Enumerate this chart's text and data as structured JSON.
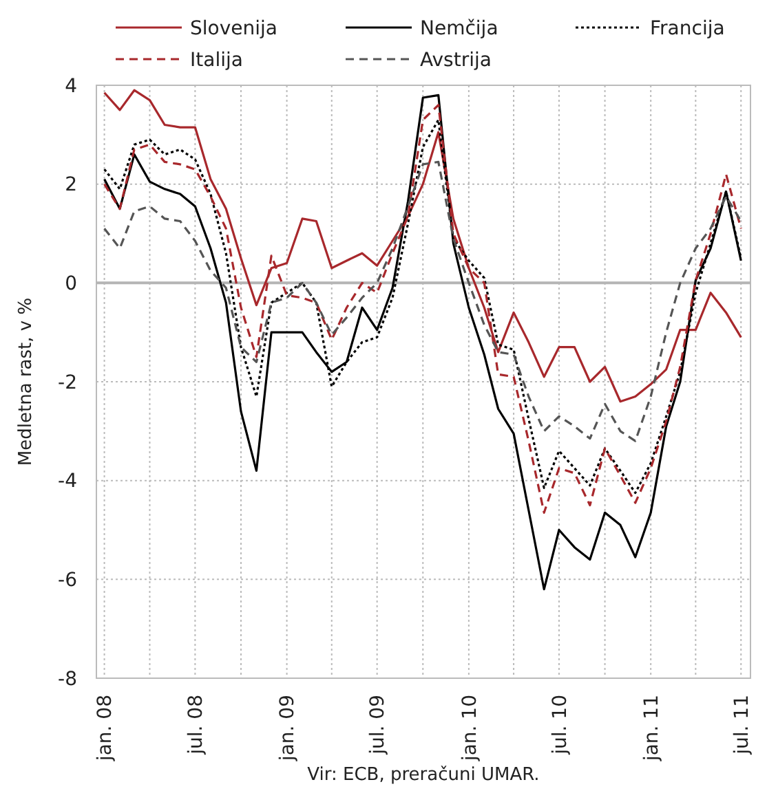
{
  "chart_data": {
    "type": "line",
    "ylabel": "Medletna rast, v %",
    "annotations": [
      "Vir: ECB, preračuni UMAR."
    ],
    "x": [
      "2008-01",
      "2008-02",
      "2008-03",
      "2008-04",
      "2008-05",
      "2008-06",
      "2008-07",
      "2008-08",
      "2008-09",
      "2008-10",
      "2008-11",
      "2008-12",
      "2009-01",
      "2009-02",
      "2009-03",
      "2009-04",
      "2009-05",
      "2009-06",
      "2009-07",
      "2009-08",
      "2009-09",
      "2009-10",
      "2009-11",
      "2009-12",
      "2010-01",
      "2010-02",
      "2010-03",
      "2010-04",
      "2010-05",
      "2010-06",
      "2010-07",
      "2010-08",
      "2010-09",
      "2010-10",
      "2010-11",
      "2010-12",
      "2011-01",
      "2011-02",
      "2011-03",
      "2011-04",
      "2011-05",
      "2011-06",
      "2011-07"
    ],
    "xlim": [
      "2007-12-16",
      "2011-07-20"
    ],
    "xticks": [
      {
        "value": "2008-01",
        "label": "jan. 08"
      },
      {
        "value": "2008-04",
        "label": null
      },
      {
        "value": "2008-07",
        "label": "jul. 08"
      },
      {
        "value": "2008-10",
        "label": null
      },
      {
        "value": "2009-01",
        "label": "jan. 09"
      },
      {
        "value": "2009-04",
        "label": null
      },
      {
        "value": "2009-07",
        "label": "jul. 09"
      },
      {
        "value": "2009-10",
        "label": null
      },
      {
        "value": "2010-01",
        "label": "jan. 10"
      },
      {
        "value": "2010-04",
        "label": null
      },
      {
        "value": "2010-07",
        "label": "jul. 10"
      },
      {
        "value": "2010-10",
        "label": null
      },
      {
        "value": "2011-01",
        "label": "jan. 11"
      },
      {
        "value": "2011-04",
        "label": null
      },
      {
        "value": "2011-07",
        "label": "jul. 11"
      }
    ],
    "ylim": [
      -8,
      4
    ],
    "yticks": [
      -8,
      -6,
      -4,
      -2,
      0,
      2,
      4
    ],
    "grid": true,
    "legend": "top",
    "marker": "none",
    "series": [
      {
        "name": "Slovenija",
        "color": "#a8282c",
        "line_style": "solid",
        "values": [
          3.85,
          3.5,
          3.9,
          3.7,
          3.2,
          3.15,
          3.15,
          2.1,
          1.5,
          0.5,
          -0.45,
          0.3,
          0.4,
          1.3,
          1.25,
          0.3,
          0.45,
          0.6,
          0.35,
          0.85,
          1.35,
          2.0,
          3.05,
          1.3,
          0.3,
          -0.5,
          -1.4,
          -0.6,
          -1.2,
          -1.9,
          -1.3,
          -1.3,
          -2.0,
          -1.7,
          -2.4,
          -2.3,
          -2.05,
          -1.75,
          -0.95,
          -0.95,
          -0.2,
          -0.6,
          -1.1
        ]
      },
      {
        "name": "Nemčija",
        "color": "#000000",
        "line_style": "solid",
        "values": [
          2.1,
          1.5,
          2.6,
          2.05,
          1.9,
          1.8,
          1.55,
          0.7,
          -0.4,
          -2.6,
          -3.8,
          -1.0,
          -1.0,
          -1.0,
          -1.4,
          -1.8,
          -1.6,
          -0.5,
          -0.95,
          -0.1,
          1.65,
          3.75,
          3.8,
          0.8,
          -0.5,
          -1.45,
          -2.55,
          -3.05,
          -4.6,
          -6.2,
          -5.0,
          -5.35,
          -5.6,
          -4.65,
          -4.9,
          -5.55,
          -4.65,
          -2.9,
          -2.0,
          0.05,
          0.7,
          1.85,
          0.45
        ]
      },
      {
        "name": "Francija",
        "color": "#000000",
        "line_style": "dotted",
        "values": [
          2.3,
          1.9,
          2.8,
          2.9,
          2.6,
          2.7,
          2.5,
          1.8,
          0.6,
          -1.3,
          -2.3,
          -0.4,
          -0.2,
          0.0,
          -0.4,
          -2.1,
          -1.6,
          -1.2,
          -1.1,
          -0.3,
          1.2,
          2.75,
          3.3,
          0.9,
          0.45,
          0.1,
          -1.25,
          -1.35,
          -2.75,
          -4.15,
          -3.4,
          -3.75,
          -4.1,
          -3.35,
          -3.8,
          -4.25,
          -3.65,
          -2.7,
          -1.8,
          -0.2,
          0.8,
          1.85,
          0.5
        ]
      },
      {
        "name": "Italija",
        "color": "#a8282c",
        "line_style": "dashed",
        "values": [
          2.0,
          1.5,
          2.7,
          2.8,
          2.45,
          2.4,
          2.3,
          1.75,
          1.1,
          -0.5,
          -1.5,
          0.55,
          -0.25,
          -0.3,
          -0.4,
          -1.15,
          -0.5,
          0.0,
          -0.2,
          0.6,
          1.35,
          3.3,
          3.6,
          1.0,
          0.3,
          0.0,
          -1.85,
          -1.9,
          -3.2,
          -4.65,
          -3.75,
          -3.85,
          -4.5,
          -3.35,
          -3.9,
          -4.45,
          -3.75,
          -2.8,
          -1.7,
          0.05,
          1.0,
          2.2,
          1.1
        ]
      },
      {
        "name": "Avstrija",
        "color": "#555555",
        "line_style": "dashed",
        "values": [
          1.1,
          0.7,
          1.45,
          1.55,
          1.3,
          1.25,
          0.85,
          0.25,
          -0.1,
          -1.3,
          -1.6,
          -0.4,
          -0.3,
          0.0,
          -0.4,
          -1.05,
          -0.7,
          -0.3,
          0.0,
          0.7,
          1.55,
          2.4,
          2.45,
          0.9,
          0.0,
          -0.85,
          -1.4,
          -1.45,
          -2.3,
          -3.0,
          -2.7,
          -2.9,
          -3.15,
          -2.45,
          -3.0,
          -3.2,
          -2.3,
          -1.0,
          0.0,
          0.7,
          1.1,
          1.75,
          1.25
        ]
      }
    ]
  }
}
